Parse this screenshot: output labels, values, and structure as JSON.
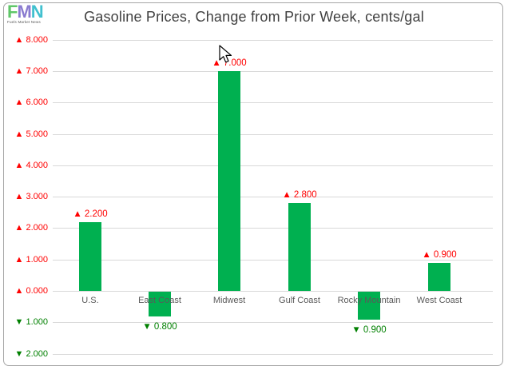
{
  "logo": {
    "letters": [
      {
        "char": "F",
        "color": "#5FC768"
      },
      {
        "char": "M",
        "color": "#8A7BD0"
      },
      {
        "char": "N",
        "color": "#41C0CF"
      }
    ],
    "tagline": "Fuels Market News"
  },
  "chart_data": {
    "type": "bar",
    "title": "Gasoline Prices, Change from Prior Week, cents/gal",
    "categories": [
      "U.S.",
      "East Coast",
      "Midwest",
      "Gulf Coast",
      "Rocky Mountain",
      "West Coast"
    ],
    "values": [
      2.2,
      -0.8,
      7.0,
      2.8,
      -0.9,
      0.9
    ],
    "data_labels": [
      "▲ 2.200",
      "▼ 0.800",
      "▲ 7.000",
      "▲ 2.800",
      "▼ 0.900",
      "▲ 0.900"
    ],
    "ytick_values": [
      8,
      7,
      6,
      5,
      4,
      3,
      2,
      1,
      0,
      -1,
      -2
    ],
    "ytick_labels": [
      "▲ 8.000",
      "▲ 7.000",
      "▲ 6.000",
      "▲ 5.000",
      "▲ 4.000",
      "▲ 3.000",
      "▲ 2.000",
      "▲ 1.000",
      "▲ 0.000",
      "▼ 1.000",
      "▼ 2.000"
    ],
    "ylim": [
      -2,
      8
    ],
    "grid": true,
    "legend": false,
    "bar_color": "#00B050",
    "positive_label_color": "#FF0000",
    "negative_label_color": "#008000",
    "gridline_color": "#D9D9D9",
    "category_label_color": "#595959",
    "title_color": "#404040"
  }
}
